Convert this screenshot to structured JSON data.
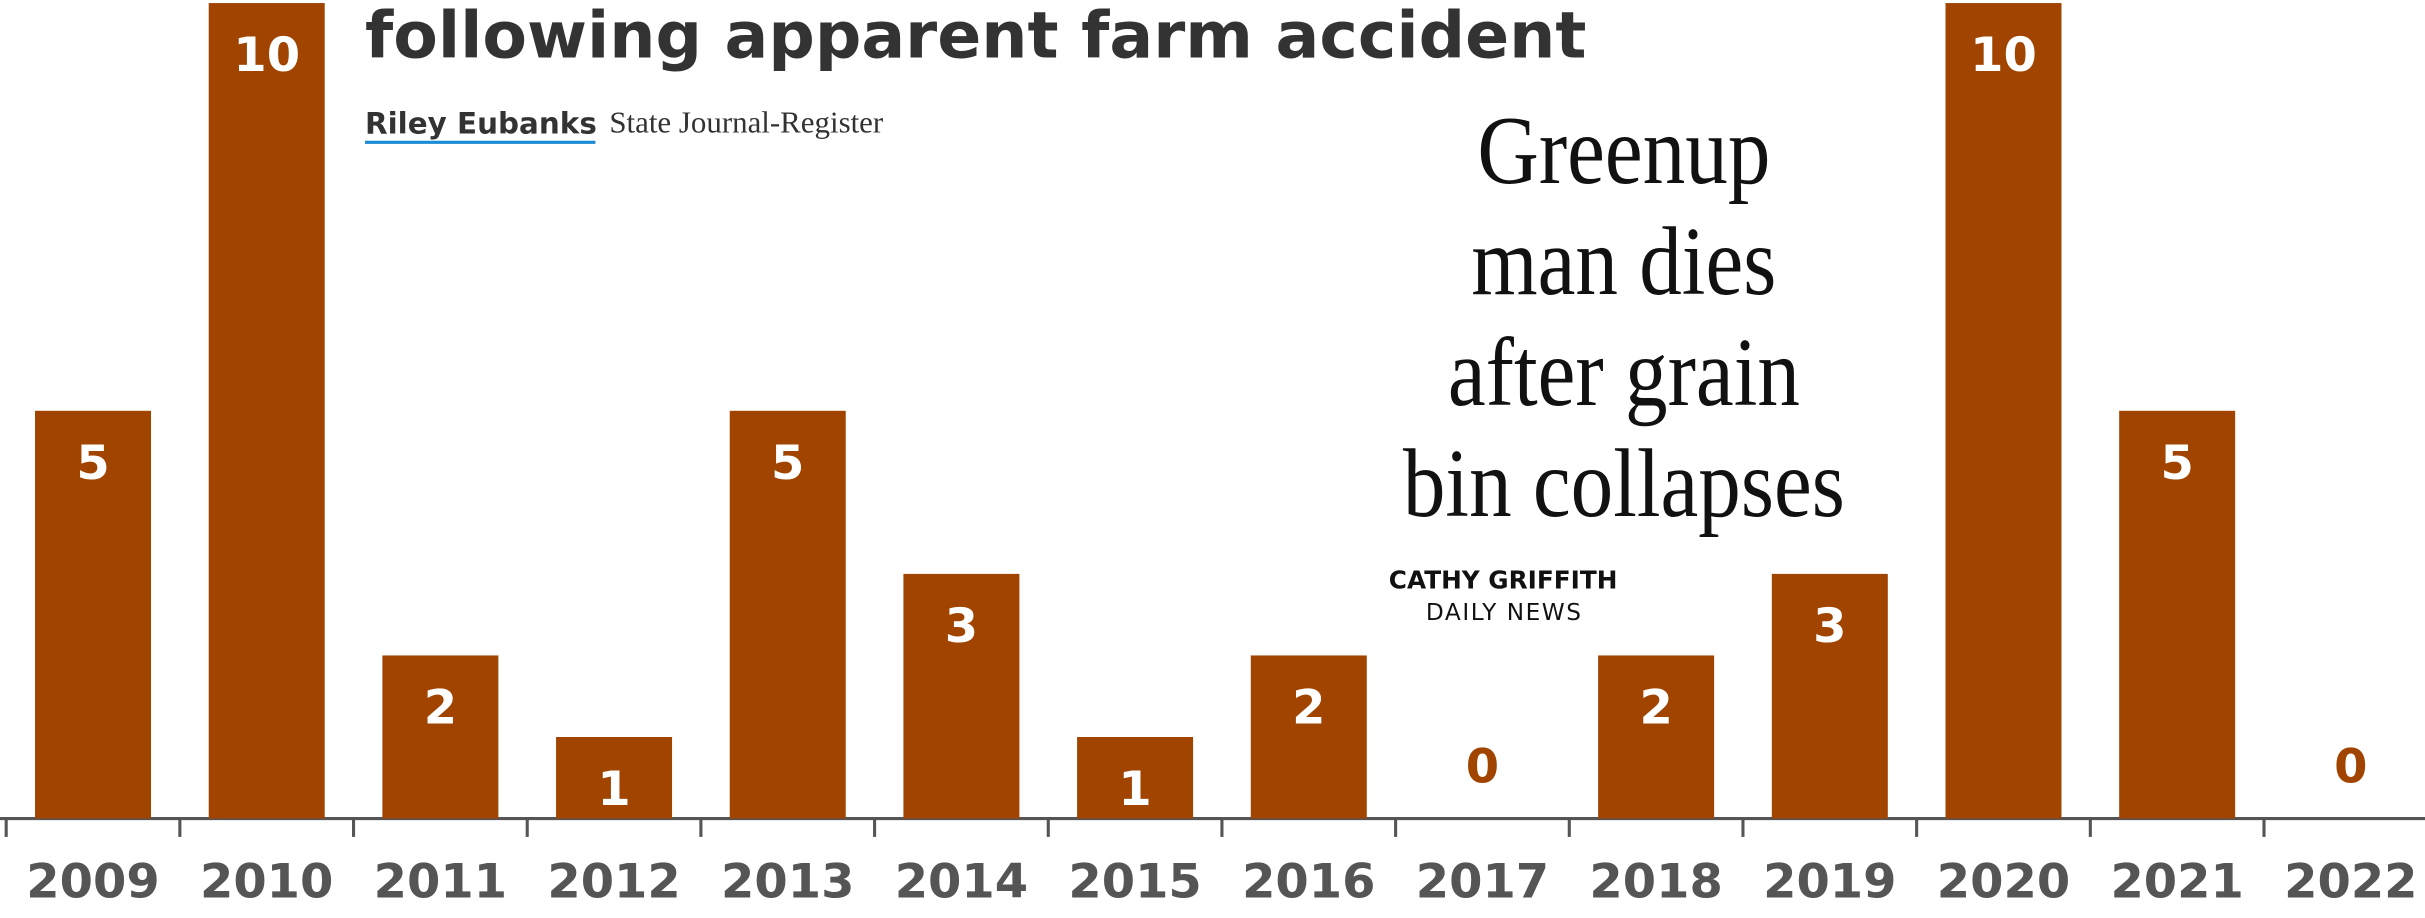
{
  "chart_data": {
    "type": "bar",
    "categories": [
      "2009",
      "2010",
      "2011",
      "2012",
      "2013",
      "2014",
      "2015",
      "2016",
      "2017",
      "2018",
      "2019",
      "2020",
      "2021",
      "2022"
    ],
    "values": [
      5,
      10,
      2,
      1,
      5,
      3,
      1,
      2,
      0,
      2,
      3,
      10,
      5,
      0
    ],
    "color": "#a04400",
    "ylim": [
      0,
      10
    ],
    "annotations": {
      "headline": "following apparent farm accident",
      "author": "Riley Eubanks",
      "source": "State Journal-Register",
      "inset_lines": [
        "Greenup",
        "man dies",
        "after grain",
        "bin collapses"
      ],
      "inset_author": "CATHY GRIFFITH",
      "inset_source": "DAILY NEWS"
    }
  }
}
